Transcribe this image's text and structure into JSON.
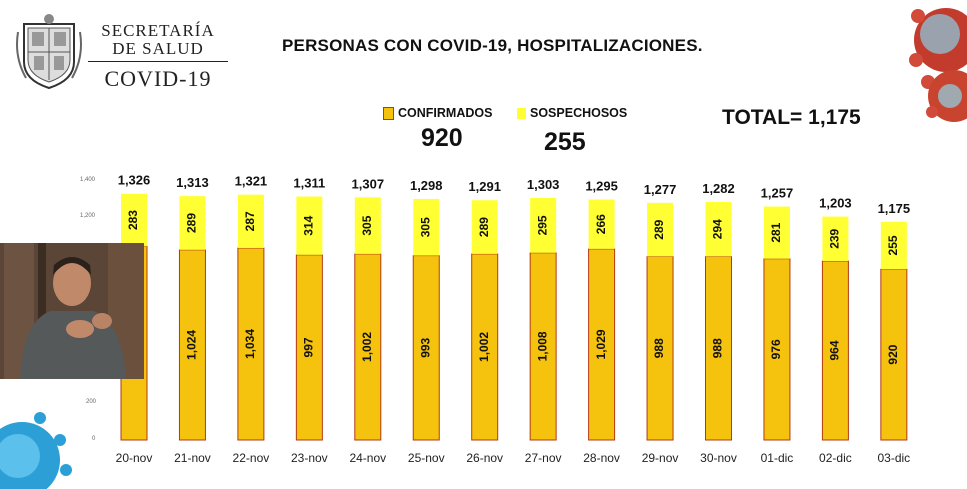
{
  "header": {
    "org_line1": "SECRETARÍA",
    "org_line2": "DE SALUD",
    "org_line3": "COVID-19",
    "title": "PERSONAS CON COVID-19, HOSPITALIZACIONES."
  },
  "legend": {
    "confirmed_label": "CONFIRMADOS",
    "confirmed_value": "920",
    "suspected_label": "SOSPECHOSOS",
    "suspected_value": "255",
    "total_label": "TOTAL= 1,175"
  },
  "colors": {
    "confirmed": "#f5c20e",
    "suspected": "#ffff33",
    "bar_edge": "#b33a14"
  },
  "chart_data": {
    "type": "bar",
    "stacked": true,
    "categories": [
      "20-nov",
      "21-nov",
      "22-nov",
      "23-nov",
      "24-nov",
      "25-nov",
      "26-nov",
      "27-nov",
      "28-nov",
      "29-nov",
      "30-nov",
      "01-dic",
      "02-dic",
      "03-dic"
    ],
    "series": [
      {
        "name": "CONFIRMADOS",
        "values": [
          1043,
          1024,
          1034,
          997,
          1002,
          993,
          1002,
          1008,
          1029,
          988,
          988,
          976,
          964,
          920
        ]
      },
      {
        "name": "SOSPECHOSOS",
        "values": [
          283,
          289,
          287,
          314,
          305,
          305,
          289,
          295,
          266,
          289,
          294,
          281,
          239,
          255
        ]
      }
    ],
    "segment_labels_confirmed": [
      "",
      "1,024",
      "1,034",
      "997",
      "1,002",
      "993",
      "1,002",
      "1,008",
      "1,029",
      "988",
      "988",
      "976",
      "964",
      "920"
    ],
    "segment_labels_suspected": [
      "283",
      "289",
      "287",
      "314",
      "305",
      "305",
      "289",
      "295",
      "266",
      "289",
      "294",
      "281",
      "239",
      "255"
    ],
    "totals": [
      "1,326",
      "1,313",
      "1,321",
      "1,311",
      "1,307",
      "1,298",
      "1,291",
      "1,303",
      "1,295",
      "1,277",
      "1,282",
      "1,257",
      "1,203",
      "1,175"
    ],
    "yticks": [
      "1,400",
      "1,200",
      "200",
      "0"
    ],
    "ylim": [
      0,
      1400
    ],
    "grid": false
  }
}
